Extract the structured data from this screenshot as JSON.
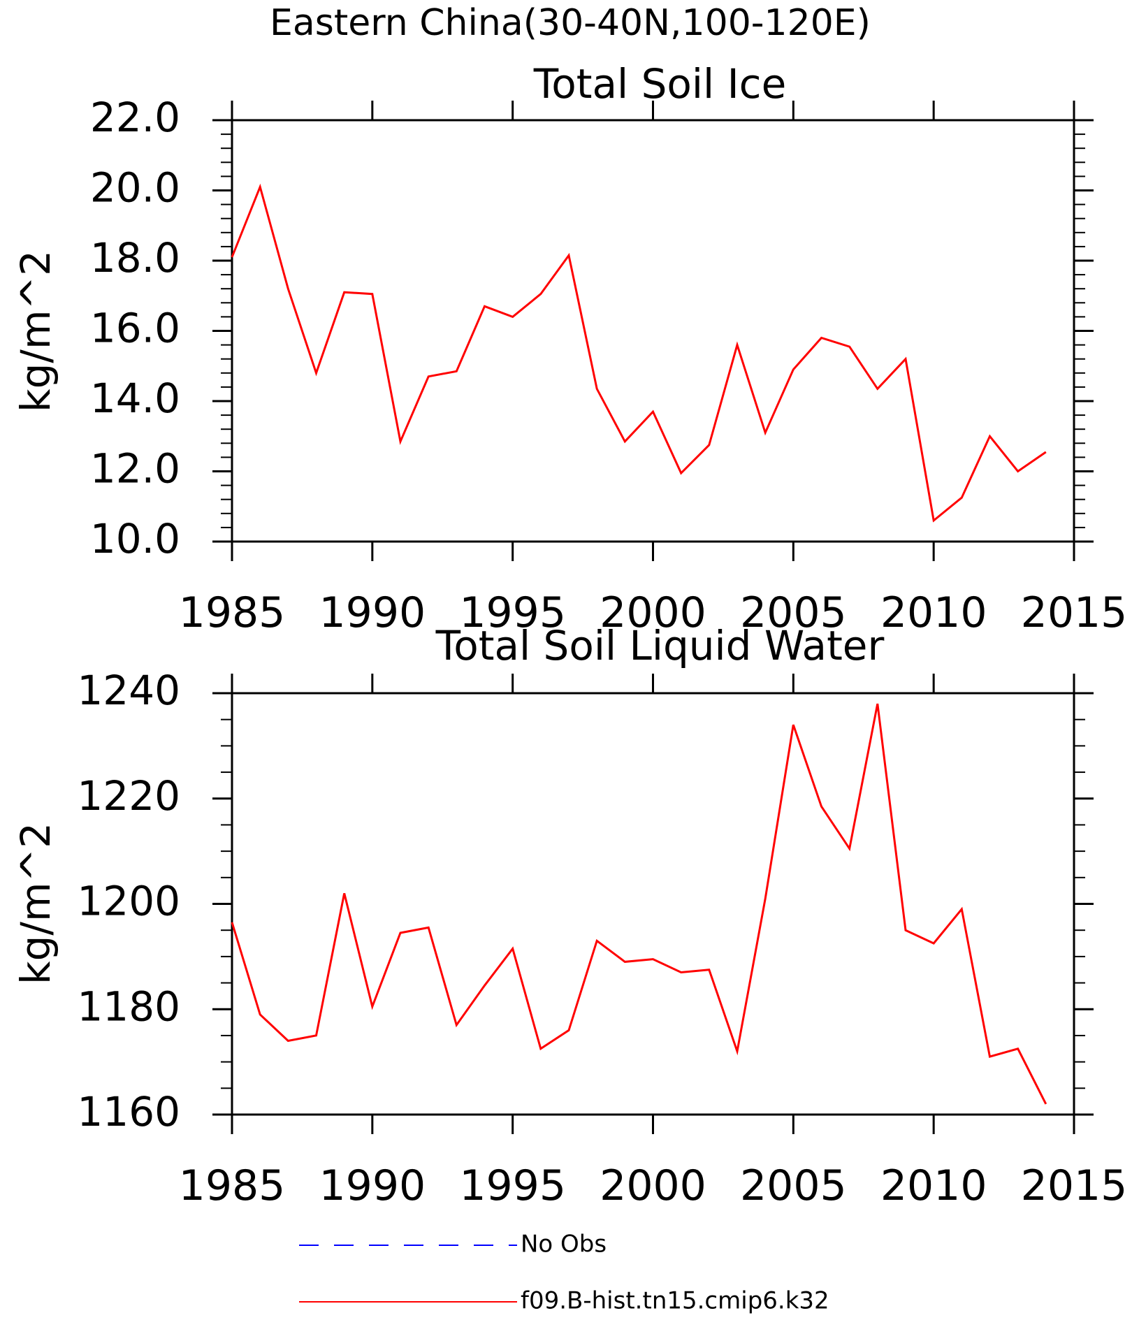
{
  "figure_title": "Eastern China(30-40N,100-120E)",
  "legend": [
    {
      "label": "No Obs",
      "color": "#0000ff",
      "style": "dashed"
    },
    {
      "label": "f09.B-hist.tn15.cmip6.k32",
      "color": "#ff0000",
      "style": "solid"
    }
  ],
  "chart_data": [
    {
      "type": "line",
      "title": "Total Soil Ice",
      "xlabel": "",
      "ylabel": "kg/m^2",
      "xlim": [
        1985,
        2015
      ],
      "ylim": [
        10,
        22
      ],
      "xticks": [
        1985,
        1990,
        1995,
        2000,
        2005,
        2010,
        2015
      ],
      "xtick_labels": [
        "1985",
        "1990",
        "1995",
        "2000",
        "2005",
        "2010",
        "2015"
      ],
      "yticks": [
        10,
        12,
        14,
        16,
        18,
        20,
        22
      ],
      "ytick_labels": [
        "10.0",
        "12.0",
        "14.0",
        "16.0",
        "18.0",
        "20.0",
        "22.0"
      ],
      "grid": false,
      "series": [
        {
          "name": "f09.B-hist.tn15.cmip6.k32",
          "color": "#ff0000",
          "x": [
            1985,
            1986,
            1987,
            1988,
            1989,
            1990,
            1991,
            1992,
            1993,
            1994,
            1995,
            1996,
            1997,
            1998,
            1999,
            2000,
            2001,
            2002,
            2003,
            2004,
            2005,
            2006,
            2007,
            2008,
            2009,
            2010,
            2011,
            2012,
            2013,
            2014
          ],
          "y": [
            18.1,
            20.1,
            17.2,
            14.8,
            17.1,
            17.05,
            12.85,
            14.7,
            14.85,
            16.7,
            16.4,
            17.05,
            18.15,
            14.35,
            12.85,
            13.7,
            11.95,
            12.75,
            15.6,
            13.1,
            14.9,
            15.8,
            15.55,
            14.35,
            15.2,
            10.6,
            11.25,
            13.0,
            12.0,
            12.55
          ]
        }
      ]
    },
    {
      "type": "line",
      "title": "Total Soil Liquid Water",
      "xlabel": "",
      "ylabel": "kg/m^2",
      "xlim": [
        1985,
        2015
      ],
      "ylim": [
        1160,
        1240
      ],
      "xticks": [
        1985,
        1990,
        1995,
        2000,
        2005,
        2010,
        2015
      ],
      "xtick_labels": [
        "1985",
        "1990",
        "1995",
        "2000",
        "2005",
        "2010",
        "2015"
      ],
      "yticks": [
        1160,
        1180,
        1200,
        1220,
        1240
      ],
      "ytick_labels": [
        "1160",
        "1180",
        "1200",
        "1220",
        "1240"
      ],
      "grid": false,
      "series": [
        {
          "name": "f09.B-hist.tn15.cmip6.k32",
          "color": "#ff0000",
          "x": [
            1985,
            1986,
            1987,
            1988,
            1989,
            1990,
            1991,
            1992,
            1993,
            1994,
            1995,
            1996,
            1997,
            1998,
            1999,
            2000,
            2001,
            2002,
            2003,
            2004,
            2005,
            2006,
            2007,
            2008,
            2009,
            2010,
            2011,
            2012,
            2013,
            2014
          ],
          "y": [
            1196.5,
            1179,
            1174,
            1175,
            1202,
            1180.5,
            1194.5,
            1195.5,
            1177,
            1184.5,
            1191.5,
            1172.5,
            1176,
            1193,
            1189,
            1189.5,
            1187,
            1187.5,
            1172,
            1201,
            1234,
            1218.5,
            1210.5,
            1238,
            1195,
            1192.5,
            1199,
            1171,
            1172.5,
            1162
          ]
        }
      ]
    }
  ]
}
